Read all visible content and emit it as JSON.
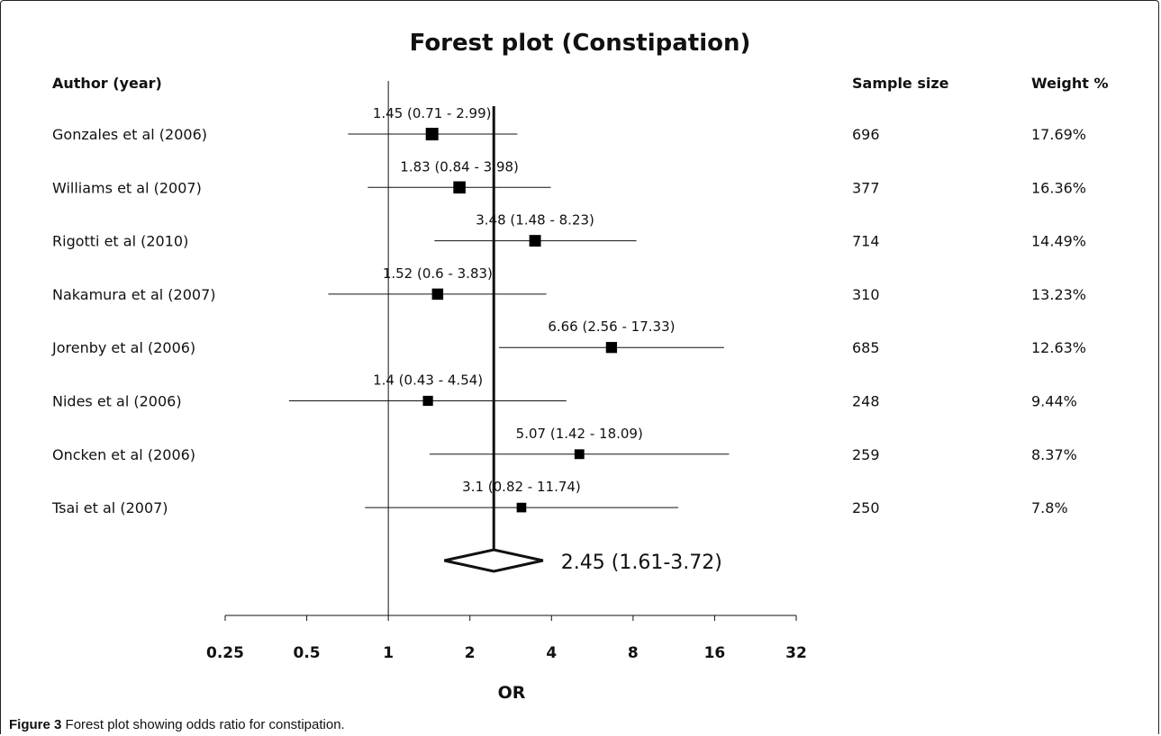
{
  "chart_data": {
    "type": "forest",
    "title": "Forest plot (Constipation)",
    "xlabel": "OR",
    "x_scale": "log2",
    "xlim": [
      0.25,
      32
    ],
    "x_ticks": [
      "0.25",
      "0.5",
      "1",
      "2",
      "4",
      "8",
      "16",
      "32"
    ],
    "columns": {
      "study": "Author (year)",
      "sample": "Sample size",
      "weight": "Weight %"
    },
    "studies": [
      {
        "name": "Gonzales et al (2006)",
        "or": 1.45,
        "lo": 0.71,
        "hi": 2.99,
        "label": "1.45 (0.71 - 2.99)",
        "sample": "696",
        "weight": "17.69%"
      },
      {
        "name": "Williams et al (2007)",
        "or": 1.83,
        "lo": 0.84,
        "hi": 3.98,
        "label": "1.83 (0.84 - 3.98)",
        "sample": "377",
        "weight": "16.36%"
      },
      {
        "name": "Rigotti et al (2010)",
        "or": 3.48,
        "lo": 1.48,
        "hi": 8.23,
        "label": "3.48 (1.48 - 8.23)",
        "sample": "714",
        "weight": "14.49%"
      },
      {
        "name": "Nakamura et al (2007)",
        "or": 1.52,
        "lo": 0.6,
        "hi": 3.83,
        "label": "1.52 (0.6 - 3.83)",
        "sample": "310",
        "weight": "13.23%"
      },
      {
        "name": "Jorenby et al (2006)",
        "or": 6.66,
        "lo": 2.56,
        "hi": 17.33,
        "label": "6.66 (2.56 - 17.33)",
        "sample": "685",
        "weight": "12.63%"
      },
      {
        "name": "Nides et al (2006)",
        "or": 1.4,
        "lo": 0.43,
        "hi": 4.54,
        "label": "1.4 (0.43 - 4.54)",
        "sample": "248",
        "weight": "9.44%"
      },
      {
        "name": "Oncken et al (2006)",
        "or": 5.07,
        "lo": 1.42,
        "hi": 18.09,
        "label": "5.07 (1.42 - 18.09)",
        "sample": "259",
        "weight": "8.37%"
      },
      {
        "name": "Tsai et al  (2007)",
        "or": 3.1,
        "lo": 0.82,
        "hi": 11.74,
        "label": "3.1 (0.82 - 11.74)",
        "sample": "250",
        "weight": "7.8%"
      }
    ],
    "pooled": {
      "or": 2.45,
      "lo": 1.61,
      "hi": 3.72,
      "label": "2.45 (1.61-3.72)"
    },
    "reference_line": 1
  },
  "caption": {
    "label": "Figure 3",
    "text": "Forest plot showing odds ratio for constipation."
  }
}
